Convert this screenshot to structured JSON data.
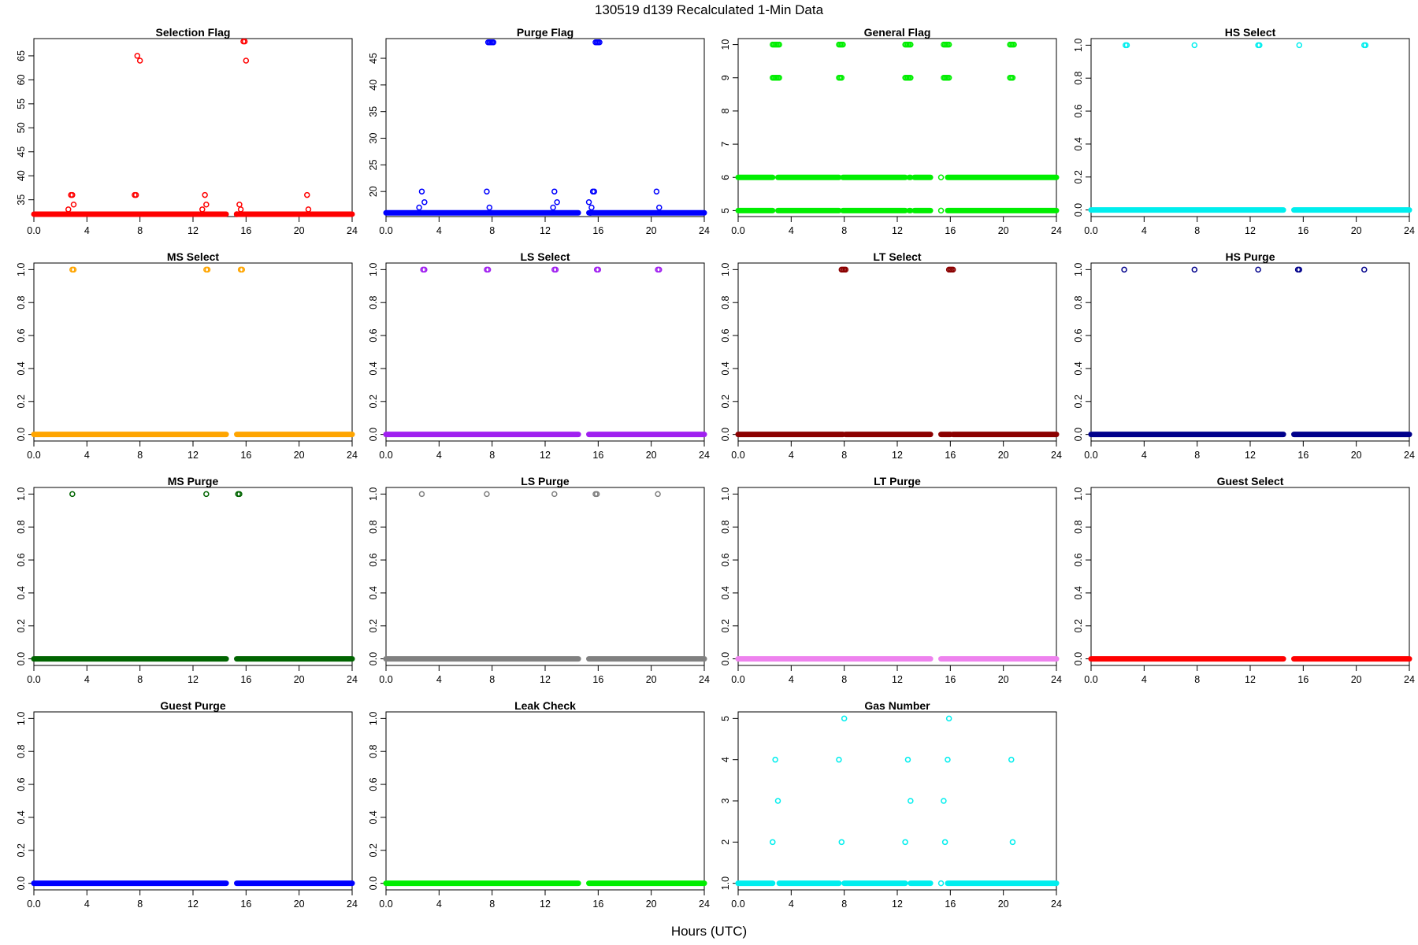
{
  "figure": {
    "main_title": "130519   d139   Recalculated 1-Min Data",
    "xlabel": "Hours (UTC)"
  },
  "chart_data": [
    {
      "type": "scatter",
      "title": "Selection Flag",
      "color": "#ff0000",
      "xlim": [
        0,
        24
      ],
      "xticks": [
        0,
        4,
        8,
        12,
        16,
        20,
        24
      ],
      "ylim": [
        31.5,
        68.6
      ],
      "yticks": [
        35,
        40,
        45,
        50,
        55,
        60,
        65
      ],
      "base": 32,
      "segments": [
        [
          0,
          14.5
        ],
        [
          15.3,
          24
        ]
      ],
      "points": [
        [
          2.6,
          33
        ],
        [
          2.8,
          36
        ],
        [
          2.9,
          36
        ],
        [
          3.0,
          34
        ],
        [
          7.6,
          36
        ],
        [
          7.7,
          36
        ],
        [
          7.8,
          65
        ],
        [
          8.0,
          64
        ],
        [
          12.7,
          33
        ],
        [
          12.9,
          36
        ],
        [
          13.0,
          34
        ],
        [
          15.3,
          32
        ],
        [
          15.5,
          34
        ],
        [
          15.6,
          33
        ],
        [
          15.8,
          68
        ],
        [
          15.9,
          68
        ],
        [
          16.0,
          64
        ],
        [
          20.6,
          36
        ],
        [
          20.7,
          33
        ]
      ]
    },
    {
      "type": "scatter",
      "title": "Purge Flag",
      "color": "#0000ff",
      "xlim": [
        0,
        24
      ],
      "xticks": [
        0,
        4,
        8,
        12,
        16,
        20,
        24
      ],
      "ylim": [
        15.3,
        48.7
      ],
      "yticks": [
        15,
        20,
        25,
        30,
        35,
        40,
        45
      ],
      "base": 16,
      "segments": [
        [
          0,
          14.5
        ],
        [
          15.3,
          24
        ]
      ],
      "points": [
        [
          2.5,
          17
        ],
        [
          2.7,
          20
        ],
        [
          2.9,
          18
        ],
        [
          7.6,
          20
        ],
        [
          7.8,
          17
        ],
        [
          7.7,
          48
        ],
        [
          7.8,
          48
        ],
        [
          7.9,
          48
        ],
        [
          8.0,
          48
        ],
        [
          8.1,
          48
        ],
        [
          12.6,
          17
        ],
        [
          12.7,
          20
        ],
        [
          12.9,
          18
        ],
        [
          15.3,
          18
        ],
        [
          15.4,
          16
        ],
        [
          15.5,
          17
        ],
        [
          15.6,
          20
        ],
        [
          15.7,
          20
        ],
        [
          15.8,
          48
        ],
        [
          15.9,
          48
        ],
        [
          16.0,
          48
        ],
        [
          16.1,
          48
        ],
        [
          20.4,
          20
        ],
        [
          20.6,
          17
        ]
      ]
    },
    {
      "type": "scatter",
      "title": "General Flag",
      "color": "#00ee00",
      "xlim": [
        0,
        24
      ],
      "xticks": [
        0,
        4,
        8,
        12,
        16,
        20,
        24
      ],
      "ylim": [
        4.82,
        10.18
      ],
      "yticks": [
        5,
        6,
        7,
        8,
        9,
        10
      ],
      "bands": [
        5,
        6
      ],
      "segments": [
        [
          0,
          2.6
        ],
        [
          3.0,
          7.6
        ],
        [
          7.9,
          12.6
        ],
        [
          12.9,
          13.0
        ],
        [
          13.3,
          14.5
        ],
        [
          15.8,
          24
        ]
      ],
      "points": [
        [
          2.6,
          9
        ],
        [
          2.7,
          9
        ],
        [
          2.8,
          9
        ],
        [
          2.9,
          9
        ],
        [
          3.0,
          9
        ],
        [
          3.1,
          9
        ],
        [
          2.6,
          10
        ],
        [
          2.7,
          10
        ],
        [
          2.8,
          10
        ],
        [
          2.9,
          10
        ],
        [
          3.0,
          10
        ],
        [
          3.1,
          10
        ],
        [
          7.6,
          9
        ],
        [
          7.7,
          9
        ],
        [
          7.8,
          9
        ],
        [
          7.6,
          10
        ],
        [
          7.7,
          10
        ],
        [
          7.8,
          10
        ],
        [
          7.9,
          10
        ],
        [
          12.6,
          9
        ],
        [
          12.7,
          9
        ],
        [
          12.8,
          9
        ],
        [
          12.9,
          9
        ],
        [
          13.0,
          9
        ],
        [
          12.6,
          10
        ],
        [
          12.7,
          10
        ],
        [
          12.8,
          10
        ],
        [
          12.9,
          10
        ],
        [
          13.0,
          10
        ],
        [
          15.3,
          6
        ],
        [
          15.3,
          5
        ],
        [
          15.5,
          9
        ],
        [
          15.6,
          9
        ],
        [
          15.7,
          9
        ],
        [
          15.8,
          9
        ],
        [
          15.9,
          9
        ],
        [
          15.5,
          10
        ],
        [
          15.6,
          10
        ],
        [
          15.7,
          10
        ],
        [
          15.8,
          10
        ],
        [
          15.9,
          10
        ],
        [
          20.5,
          9
        ],
        [
          20.6,
          9
        ],
        [
          20.7,
          9
        ],
        [
          20.5,
          10
        ],
        [
          20.6,
          10
        ],
        [
          20.7,
          10
        ],
        [
          20.8,
          10
        ]
      ]
    },
    {
      "type": "scatter",
      "title": "HS Select",
      "color": "#00eeee",
      "xlim": [
        0,
        24
      ],
      "xticks": [
        0,
        4,
        8,
        12,
        16,
        20,
        24
      ],
      "ylim": [
        -0.04,
        1.04
      ],
      "yticks": [
        0,
        0.2,
        0.4,
        0.6,
        0.8,
        1.0
      ],
      "base": 0,
      "segments": [
        [
          0,
          14.5
        ],
        [
          15.3,
          24
        ]
      ],
      "points": [
        [
          2.6,
          1
        ],
        [
          2.7,
          1
        ],
        [
          7.8,
          1
        ],
        [
          12.6,
          1
        ],
        [
          12.7,
          1
        ],
        [
          15.7,
          1
        ],
        [
          20.6,
          1
        ],
        [
          20.7,
          1
        ]
      ]
    },
    {
      "type": "scatter",
      "title": "MS Select",
      "color": "#ffa500",
      "xlim": [
        0,
        24
      ],
      "xticks": [
        0,
        4,
        8,
        12,
        16,
        20,
        24
      ],
      "ylim": [
        -0.04,
        1.04
      ],
      "yticks": [
        0,
        0.2,
        0.4,
        0.6,
        0.8,
        1.0
      ],
      "base": 0,
      "segments": [
        [
          0,
          14.5
        ],
        [
          15.3,
          24
        ]
      ],
      "points": [
        [
          2.9,
          1
        ],
        [
          3.0,
          1
        ],
        [
          13.0,
          1
        ],
        [
          13.1,
          1
        ],
        [
          15.6,
          1
        ],
        [
          15.7,
          1
        ]
      ]
    },
    {
      "type": "scatter",
      "title": "LS Select",
      "color": "#a020f0",
      "xlim": [
        0,
        24
      ],
      "xticks": [
        0,
        4,
        8,
        12,
        16,
        20,
        24
      ],
      "ylim": [
        -0.04,
        1.04
      ],
      "yticks": [
        0,
        0.2,
        0.4,
        0.6,
        0.8,
        1.0
      ],
      "base": 0,
      "segments": [
        [
          0,
          14.5
        ],
        [
          15.3,
          24
        ]
      ],
      "points": [
        [
          2.8,
          1
        ],
        [
          2.9,
          1
        ],
        [
          7.6,
          1
        ],
        [
          7.7,
          1
        ],
        [
          12.7,
          1
        ],
        [
          12.8,
          1
        ],
        [
          15.9,
          1
        ],
        [
          16.0,
          1
        ],
        [
          20.5,
          1
        ],
        [
          20.6,
          1
        ]
      ]
    },
    {
      "type": "scatter",
      "title": "LT Select",
      "color": "#8b0000",
      "xlim": [
        0,
        24
      ],
      "xticks": [
        0,
        4,
        8,
        12,
        16,
        20,
        24
      ],
      "ylim": [
        -0.04,
        1.04
      ],
      "yticks": [
        0,
        0.2,
        0.4,
        0.6,
        0.8,
        1.0
      ],
      "base": 0,
      "segments": [
        [
          0,
          7.9
        ],
        [
          8.1,
          14.5
        ],
        [
          15.3,
          16.0
        ],
        [
          16.2,
          24
        ]
      ],
      "points": [
        [
          7.8,
          1
        ],
        [
          7.9,
          1
        ],
        [
          8.0,
          1
        ],
        [
          8.1,
          1
        ],
        [
          15.9,
          1
        ],
        [
          16.0,
          1
        ],
        [
          16.1,
          1
        ],
        [
          16.2,
          1
        ]
      ]
    },
    {
      "type": "scatter",
      "title": "HS Purge",
      "color": "#00008b",
      "xlim": [
        0,
        24
      ],
      "xticks": [
        0,
        4,
        8,
        12,
        16,
        20,
        24
      ],
      "ylim": [
        -0.04,
        1.04
      ],
      "yticks": [
        0,
        0.2,
        0.4,
        0.6,
        0.8,
        1.0
      ],
      "base": 0,
      "segments": [
        [
          0,
          14.5
        ],
        [
          15.3,
          24
        ]
      ],
      "points": [
        [
          2.5,
          1
        ],
        [
          7.8,
          1
        ],
        [
          12.6,
          1
        ],
        [
          15.6,
          1
        ],
        [
          15.7,
          1
        ],
        [
          20.6,
          1
        ]
      ]
    },
    {
      "type": "scatter",
      "title": "MS Purge",
      "color": "#006400",
      "xlim": [
        0,
        24
      ],
      "xticks": [
        0,
        4,
        8,
        12,
        16,
        20,
        24
      ],
      "ylim": [
        -0.04,
        1.04
      ],
      "yticks": [
        0,
        0.2,
        0.4,
        0.6,
        0.8,
        1.0
      ],
      "base": 0,
      "segments": [
        [
          0,
          14.5
        ],
        [
          15.3,
          24
        ]
      ],
      "points": [
        [
          2.9,
          1
        ],
        [
          13.0,
          1
        ],
        [
          15.4,
          1
        ],
        [
          15.5,
          1
        ]
      ]
    },
    {
      "type": "scatter",
      "title": "LS Purge",
      "color": "#808080",
      "xlim": [
        0,
        24
      ],
      "xticks": [
        0,
        4,
        8,
        12,
        16,
        20,
        24
      ],
      "ylim": [
        -0.04,
        1.04
      ],
      "yticks": [
        0,
        0.2,
        0.4,
        0.6,
        0.8,
        1.0
      ],
      "base": 0,
      "segments": [
        [
          0,
          14.5
        ],
        [
          15.3,
          24
        ]
      ],
      "points": [
        [
          2.7,
          1
        ],
        [
          7.6,
          1
        ],
        [
          12.7,
          1
        ],
        [
          15.8,
          1
        ],
        [
          15.9,
          1
        ],
        [
          20.5,
          1
        ]
      ]
    },
    {
      "type": "scatter",
      "title": "LT Purge",
      "color": "#ee82ee",
      "xlim": [
        0,
        24
      ],
      "xticks": [
        0,
        4,
        8,
        12,
        16,
        20,
        24
      ],
      "ylim": [
        -0.04,
        1.04
      ],
      "yticks": [
        0,
        0.2,
        0.4,
        0.6,
        0.8,
        1.0
      ],
      "base": 0,
      "segments": [
        [
          0,
          14.5
        ],
        [
          15.3,
          24
        ]
      ],
      "points": []
    },
    {
      "type": "scatter",
      "title": "Guest Select",
      "color": "#ff0000",
      "xlim": [
        0,
        24
      ],
      "xticks": [
        0,
        4,
        8,
        12,
        16,
        20,
        24
      ],
      "ylim": [
        -0.04,
        1.04
      ],
      "yticks": [
        0,
        0.2,
        0.4,
        0.6,
        0.8,
        1.0
      ],
      "base": 0,
      "segments": [
        [
          0,
          14.5
        ],
        [
          15.3,
          24
        ]
      ],
      "points": []
    },
    {
      "type": "scatter",
      "title": "Guest Purge",
      "color": "#0000ff",
      "xlim": [
        0,
        24
      ],
      "xticks": [
        0,
        4,
        8,
        12,
        16,
        20,
        24
      ],
      "ylim": [
        -0.04,
        1.04
      ],
      "yticks": [
        0,
        0.2,
        0.4,
        0.6,
        0.8,
        1.0
      ],
      "base": 0,
      "segments": [
        [
          0,
          14.5
        ],
        [
          15.3,
          24
        ]
      ],
      "points": []
    },
    {
      "type": "scatter",
      "title": "Leak Check",
      "color": "#00ee00",
      "xlim": [
        0,
        24
      ],
      "xticks": [
        0,
        4,
        8,
        12,
        16,
        20,
        24
      ],
      "ylim": [
        -0.04,
        1.04
      ],
      "yticks": [
        0,
        0.2,
        0.4,
        0.6,
        0.8,
        1.0
      ],
      "base": 0,
      "segments": [
        [
          0,
          14.5
        ],
        [
          15.3,
          24
        ]
      ],
      "points": []
    },
    {
      "type": "scatter",
      "title": "Gas Number",
      "color": "#00eeee",
      "xlim": [
        0,
        24
      ],
      "xticks": [
        0,
        4,
        8,
        12,
        16,
        20,
        24
      ],
      "ylim": [
        0.84,
        5.16
      ],
      "yticks": [
        1,
        2,
        3,
        4,
        5
      ],
      "base": 1,
      "segments": [
        [
          0,
          2.6
        ],
        [
          3.1,
          7.6
        ],
        [
          8.0,
          12.6
        ],
        [
          13.0,
          14.5
        ],
        [
          15.8,
          24
        ]
      ],
      "points": [
        [
          2.6,
          2
        ],
        [
          2.8,
          4
        ],
        [
          3.0,
          3
        ],
        [
          7.6,
          4
        ],
        [
          7.8,
          2
        ],
        [
          8.0,
          5
        ],
        [
          12.6,
          2
        ],
        [
          12.8,
          4
        ],
        [
          13.0,
          3
        ],
        [
          15.3,
          1
        ],
        [
          15.5,
          3
        ],
        [
          15.6,
          2
        ],
        [
          15.8,
          4
        ],
        [
          15.9,
          5
        ],
        [
          20.6,
          4
        ],
        [
          20.7,
          2
        ]
      ]
    }
  ]
}
